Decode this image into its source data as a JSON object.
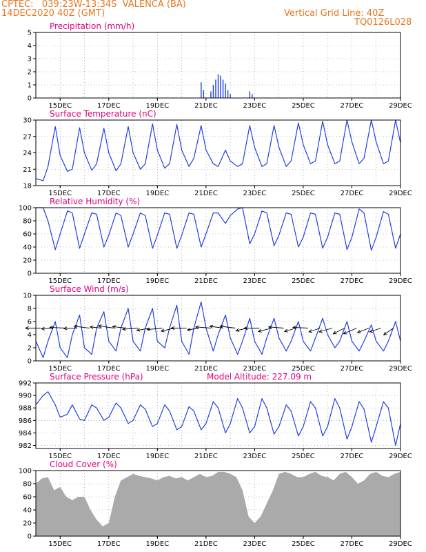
{
  "header": {
    "line1_left": "CPTEC:   039:23W-13:34S  VALENCA (BA)",
    "line2_left": "14DEC2020 40Z (GMT)",
    "line2_right": "Vertical Grid Line: 40Z",
    "line3_right": "TQ0126L028"
  },
  "colors": {
    "header_text": "#e87722",
    "panel_title": "#e0007a",
    "series_line": "#1f3fe0",
    "precip_bar": "#1f3fe0",
    "cloud_fill": "#aaaaaa",
    "wind_arrow": "#000000",
    "grid": "#888888"
  },
  "chart_data": [
    {
      "type": "bar",
      "title": "Precipitation (mm/h)",
      "ylim": [
        0,
        5
      ],
      "yticks": [
        "0",
        "1",
        "2",
        "3",
        "4",
        "5"
      ],
      "xlim_days": [
        14,
        29
      ],
      "xticks": [
        "15DEC",
        "17DEC",
        "19DEC",
        "21DEC",
        "23DEC",
        "25DEC",
        "27DEC",
        "29DEC"
      ],
      "grid": true,
      "x": [
        20.8,
        20.9,
        21.2,
        21.3,
        21.4,
        21.5,
        21.6,
        21.7,
        21.8,
        21.9,
        22.0,
        22.8,
        22.9,
        29.0
      ],
      "values": [
        1.2,
        0.6,
        0.5,
        1.0,
        1.4,
        1.8,
        1.7,
        1.4,
        1.1,
        0.6,
        0.3,
        0.5,
        0.3,
        0.1
      ]
    },
    {
      "type": "line",
      "title": "Surface Temperature (nC)",
      "ylim": [
        18,
        30
      ],
      "yticks": [
        "18",
        "21",
        "24",
        "27",
        "30"
      ],
      "xlim_days": [
        14,
        29
      ],
      "xticks": [
        "15DEC",
        "17DEC",
        "19DEC",
        "21DEC",
        "23DEC",
        "25DEC",
        "27DEC",
        "29DEC"
      ],
      "grid": true,
      "x": [
        14.0,
        14.3,
        14.5,
        14.8,
        15.0,
        15.3,
        15.5,
        15.8,
        16.0,
        16.3,
        16.5,
        16.8,
        17.0,
        17.3,
        17.5,
        17.8,
        18.0,
        18.3,
        18.5,
        18.8,
        19.0,
        19.3,
        19.5,
        19.8,
        20.0,
        20.3,
        20.5,
        20.8,
        21.0,
        21.3,
        21.5,
        21.8,
        22.0,
        22.3,
        22.5,
        22.8,
        23.0,
        23.3,
        23.5,
        23.8,
        24.0,
        24.3,
        24.5,
        24.8,
        25.0,
        25.3,
        25.5,
        25.8,
        26.0,
        26.3,
        26.5,
        26.8,
        27.0,
        27.3,
        27.5,
        27.8,
        28.0,
        28.3,
        28.5,
        28.8,
        29.0
      ],
      "values": [
        19.3,
        18.9,
        21.5,
        28.8,
        23.5,
        20.6,
        21.0,
        28.6,
        24.0,
        20.8,
        22.0,
        28.5,
        24.0,
        20.7,
        22.0,
        28.8,
        24.0,
        21.0,
        22.0,
        29.3,
        24.5,
        21.2,
        22.0,
        29.2,
        24.5,
        21.5,
        23.0,
        29.0,
        24.5,
        22.0,
        21.5,
        24.5,
        22.5,
        21.5,
        22.0,
        29.0,
        25.0,
        21.5,
        22.0,
        29.0,
        25.0,
        21.5,
        22.5,
        29.5,
        25.5,
        22.0,
        22.5,
        29.8,
        25.5,
        22.0,
        22.5,
        30.0,
        26.0,
        22.0,
        23.0,
        30.0,
        26.0,
        22.0,
        22.5,
        30.0,
        25.8
      ]
    },
    {
      "type": "line",
      "title": "Relative Humidity (%)",
      "ylim": [
        0,
        100
      ],
      "yticks": [
        "0",
        "20",
        "40",
        "60",
        "80",
        "100"
      ],
      "xlim_days": [
        14,
        29
      ],
      "xticks": [
        "15DEC",
        "17DEC",
        "19DEC",
        "21DEC",
        "23DEC",
        "25DEC",
        "27DEC",
        "29DEC"
      ],
      "grid": true,
      "x": [
        14.0,
        14.3,
        14.5,
        14.8,
        15.0,
        15.3,
        15.5,
        15.8,
        16.0,
        16.3,
        16.5,
        16.8,
        17.0,
        17.3,
        17.5,
        17.8,
        18.0,
        18.3,
        18.5,
        18.8,
        19.0,
        19.3,
        19.5,
        19.8,
        20.0,
        20.3,
        20.5,
        20.8,
        21.0,
        21.3,
        21.5,
        21.8,
        22.0,
        22.3,
        22.5,
        22.8,
        23.0,
        23.3,
        23.5,
        23.8,
        24.0,
        24.3,
        24.5,
        24.8,
        25.0,
        25.3,
        25.5,
        25.8,
        26.0,
        26.3,
        26.5,
        26.8,
        27.0,
        27.3,
        27.5,
        27.8,
        28.0,
        28.3,
        28.5,
        28.8,
        29.0
      ],
      "values": [
        100,
        100,
        80,
        36,
        60,
        95,
        92,
        38,
        60,
        92,
        90,
        40,
        58,
        92,
        88,
        40,
        60,
        92,
        88,
        38,
        58,
        92,
        90,
        38,
        58,
        92,
        90,
        40,
        60,
        92,
        92,
        76,
        88,
        98,
        100,
        45,
        60,
        95,
        92,
        42,
        58,
        92,
        90,
        40,
        55,
        92,
        90,
        38,
        55,
        92,
        90,
        36,
        55,
        98,
        92,
        35,
        55,
        94,
        90,
        38,
        60
      ]
    },
    {
      "type": "line",
      "title": "Surface Wind (m/s)",
      "ylim": [
        0,
        10
      ],
      "yticks": [
        "0",
        "2",
        "4",
        "6",
        "8",
        "10"
      ],
      "xlim_days": [
        14,
        29
      ],
      "xticks": [
        "15DEC",
        "17DEC",
        "19DEC",
        "21DEC",
        "23DEC",
        "25DEC",
        "27DEC",
        "29DEC"
      ],
      "grid": true,
      "x": [
        14.0,
        14.3,
        14.5,
        14.8,
        15.0,
        15.3,
        15.5,
        15.8,
        16.0,
        16.3,
        16.5,
        16.8,
        17.0,
        17.3,
        17.5,
        17.8,
        18.0,
        18.3,
        18.5,
        18.8,
        19.0,
        19.3,
        19.5,
        19.8,
        20.0,
        20.3,
        20.5,
        20.8,
        21.0,
        21.3,
        21.5,
        21.8,
        22.0,
        22.3,
        22.5,
        22.8,
        23.0,
        23.3,
        23.5,
        23.8,
        24.0,
        24.3,
        24.5,
        24.8,
        25.0,
        25.3,
        25.5,
        25.8,
        26.0,
        26.3,
        26.5,
        26.8,
        27.0,
        27.3,
        27.5,
        27.8,
        28.0,
        28.3,
        28.5,
        28.8,
        29.0
      ],
      "values": [
        3.0,
        0.5,
        3.0,
        6.0,
        2.0,
        0.5,
        4.0,
        7.0,
        2.0,
        1.0,
        5.0,
        7.5,
        3.0,
        1.5,
        5.0,
        8.0,
        3.0,
        1.5,
        5.0,
        8.0,
        3.0,
        2.0,
        5.0,
        8.5,
        3.0,
        1.0,
        5.0,
        9.0,
        5.0,
        1.5,
        4.0,
        7.0,
        3.5,
        1.0,
        3.0,
        6.5,
        3.0,
        1.0,
        3.5,
        6.5,
        3.5,
        1.5,
        3.0,
        6.0,
        3.0,
        1.5,
        3.5,
        6.5,
        4.0,
        2.0,
        3.0,
        6.0,
        3.0,
        1.5,
        3.0,
        5.5,
        3.0,
        1.5,
        3.0,
        6.0,
        3.0
      ],
      "vectors": {
        "days": [
          14.2,
          14.7,
          15.2,
          15.7,
          16.2,
          16.7,
          17.2,
          17.7,
          18.2,
          18.7,
          19.2,
          19.7,
          20.2,
          20.7,
          21.2,
          21.7,
          22.2,
          22.7,
          23.2,
          23.7,
          24.2,
          24.7,
          25.2,
          25.7,
          26.2,
          26.7,
          27.2,
          27.7,
          28.2,
          28.7
        ],
        "u": [
          -4.0,
          -3.0,
          -4.0,
          -3.5,
          -4.0,
          -3.0,
          -4.0,
          -3.5,
          -4.0,
          -3.5,
          -4.0,
          -3.5,
          -4.0,
          -3.0,
          -4.0,
          -3.5,
          -4.0,
          -3.0,
          -4.0,
          -3.5,
          -4.0,
          -3.0,
          -4.0,
          -3.0,
          -3.5,
          -3.0,
          -3.5,
          -3.0,
          -3.0,
          -2.5
        ],
        "v": [
          0.0,
          -0.2,
          0.2,
          -0.1,
          0.5,
          0.3,
          0.6,
          0.4,
          -0.3,
          -0.6,
          -0.4,
          -0.8,
          0.0,
          -0.5,
          0.3,
          0.5,
          0.5,
          -0.7,
          0.0,
          -0.9,
          0.3,
          -0.9,
          0.2,
          -1.0,
          -1.0,
          -1.5,
          -1.5,
          -1.2,
          -1.0,
          -1.8
        ],
        "lon": [
          5.0,
          5.0,
          5.0,
          5.0,
          5.0,
          5.0,
          5.0,
          5.0,
          5.0,
          5.0,
          5.0,
          5.0,
          5.0,
          5.0,
          5.0,
          5.0,
          5.0,
          5.0,
          5.0,
          5.0,
          5.0,
          5.0,
          5.0,
          5.0,
          5.0,
          5.0,
          5.0,
          5.0,
          5.0,
          5.0
        ]
      }
    },
    {
      "type": "line",
      "title": "Surface Pressure (hPa)",
      "annotation": "Model Altitude: 227.09 m",
      "ylim": [
        981.5,
        992
      ],
      "yticks": [
        "982",
        "984",
        "986",
        "988",
        "990",
        "992"
      ],
      "xlim_days": [
        14,
        29
      ],
      "xticks": [
        "15DEC",
        "17DEC",
        "19DEC",
        "21DEC",
        "23DEC",
        "25DEC",
        "27DEC",
        "29DEC"
      ],
      "grid": true,
      "x": [
        14.0,
        14.3,
        14.5,
        14.8,
        15.0,
        15.3,
        15.5,
        15.8,
        16.0,
        16.3,
        16.5,
        16.8,
        17.0,
        17.3,
        17.5,
        17.8,
        18.0,
        18.3,
        18.5,
        18.8,
        19.0,
        19.3,
        19.5,
        19.8,
        20.0,
        20.3,
        20.5,
        20.8,
        21.0,
        21.3,
        21.5,
        21.8,
        22.0,
        22.3,
        22.5,
        22.8,
        23.0,
        23.3,
        23.5,
        23.8,
        24.0,
        24.3,
        24.5,
        24.8,
        25.0,
        25.3,
        25.5,
        25.8,
        26.0,
        26.3,
        26.5,
        26.8,
        27.0,
        27.3,
        27.5,
        27.8,
        28.0,
        28.3,
        28.5,
        28.8,
        29.0
      ],
      "values": [
        988.5,
        990.0,
        990.6,
        988.5,
        986.5,
        987.0,
        988.5,
        986.2,
        986.0,
        988.5,
        988.0,
        986.0,
        986.5,
        988.8,
        988.0,
        985.5,
        986.0,
        988.5,
        987.8,
        985.0,
        985.5,
        988.5,
        987.5,
        984.5,
        985.0,
        988.2,
        987.5,
        984.5,
        985.5,
        989.0,
        988.0,
        984.0,
        985.5,
        989.5,
        988.0,
        984.0,
        985.0,
        989.5,
        988.0,
        983.8,
        985.0,
        988.5,
        987.5,
        983.5,
        985.0,
        989.0,
        988.0,
        983.5,
        985.0,
        989.5,
        988.0,
        983.0,
        985.0,
        989.0,
        987.8,
        982.5,
        985.0,
        989.0,
        988.0,
        982.0,
        985.5
      ]
    },
    {
      "type": "area",
      "title": "Cloud Cover (%)",
      "ylim": [
        0,
        100
      ],
      "yticks": [
        "0",
        "20",
        "40",
        "60",
        "80",
        "100"
      ],
      "xlim_days": [
        14,
        29
      ],
      "xticks": [
        "15DEC",
        "17DEC",
        "19DEC",
        "21DEC",
        "23DEC",
        "25DEC",
        "27DEC",
        "29DEC"
      ],
      "grid": true,
      "x": [
        14.0,
        14.25,
        14.5,
        14.75,
        15.0,
        15.25,
        15.5,
        15.75,
        16.0,
        16.25,
        16.5,
        16.75,
        17.0,
        17.25,
        17.5,
        17.75,
        18.0,
        18.25,
        18.5,
        18.75,
        19.0,
        19.25,
        19.5,
        19.75,
        20.0,
        20.25,
        20.5,
        20.75,
        21.0,
        21.25,
        21.5,
        21.75,
        22.0,
        22.25,
        22.5,
        22.75,
        23.0,
        23.25,
        23.5,
        23.75,
        24.0,
        24.25,
        24.5,
        24.75,
        25.0,
        25.25,
        25.5,
        25.75,
        26.0,
        26.25,
        26.5,
        26.75,
        27.0,
        27.25,
        27.5,
        27.75,
        28.0,
        28.25,
        28.5,
        28.75,
        29.0
      ],
      "values": [
        80,
        88,
        90,
        70,
        75,
        60,
        55,
        60,
        60,
        40,
        25,
        15,
        20,
        60,
        85,
        90,
        95,
        92,
        90,
        88,
        85,
        90,
        92,
        88,
        90,
        85,
        90,
        95,
        90,
        92,
        98,
        98,
        95,
        90,
        70,
        30,
        20,
        30,
        50,
        70,
        95,
        98,
        95,
        90,
        90,
        95,
        98,
        92,
        90,
        85,
        95,
        98,
        90,
        80,
        85,
        95,
        98,
        92,
        90,
        95,
        98
      ]
    }
  ]
}
